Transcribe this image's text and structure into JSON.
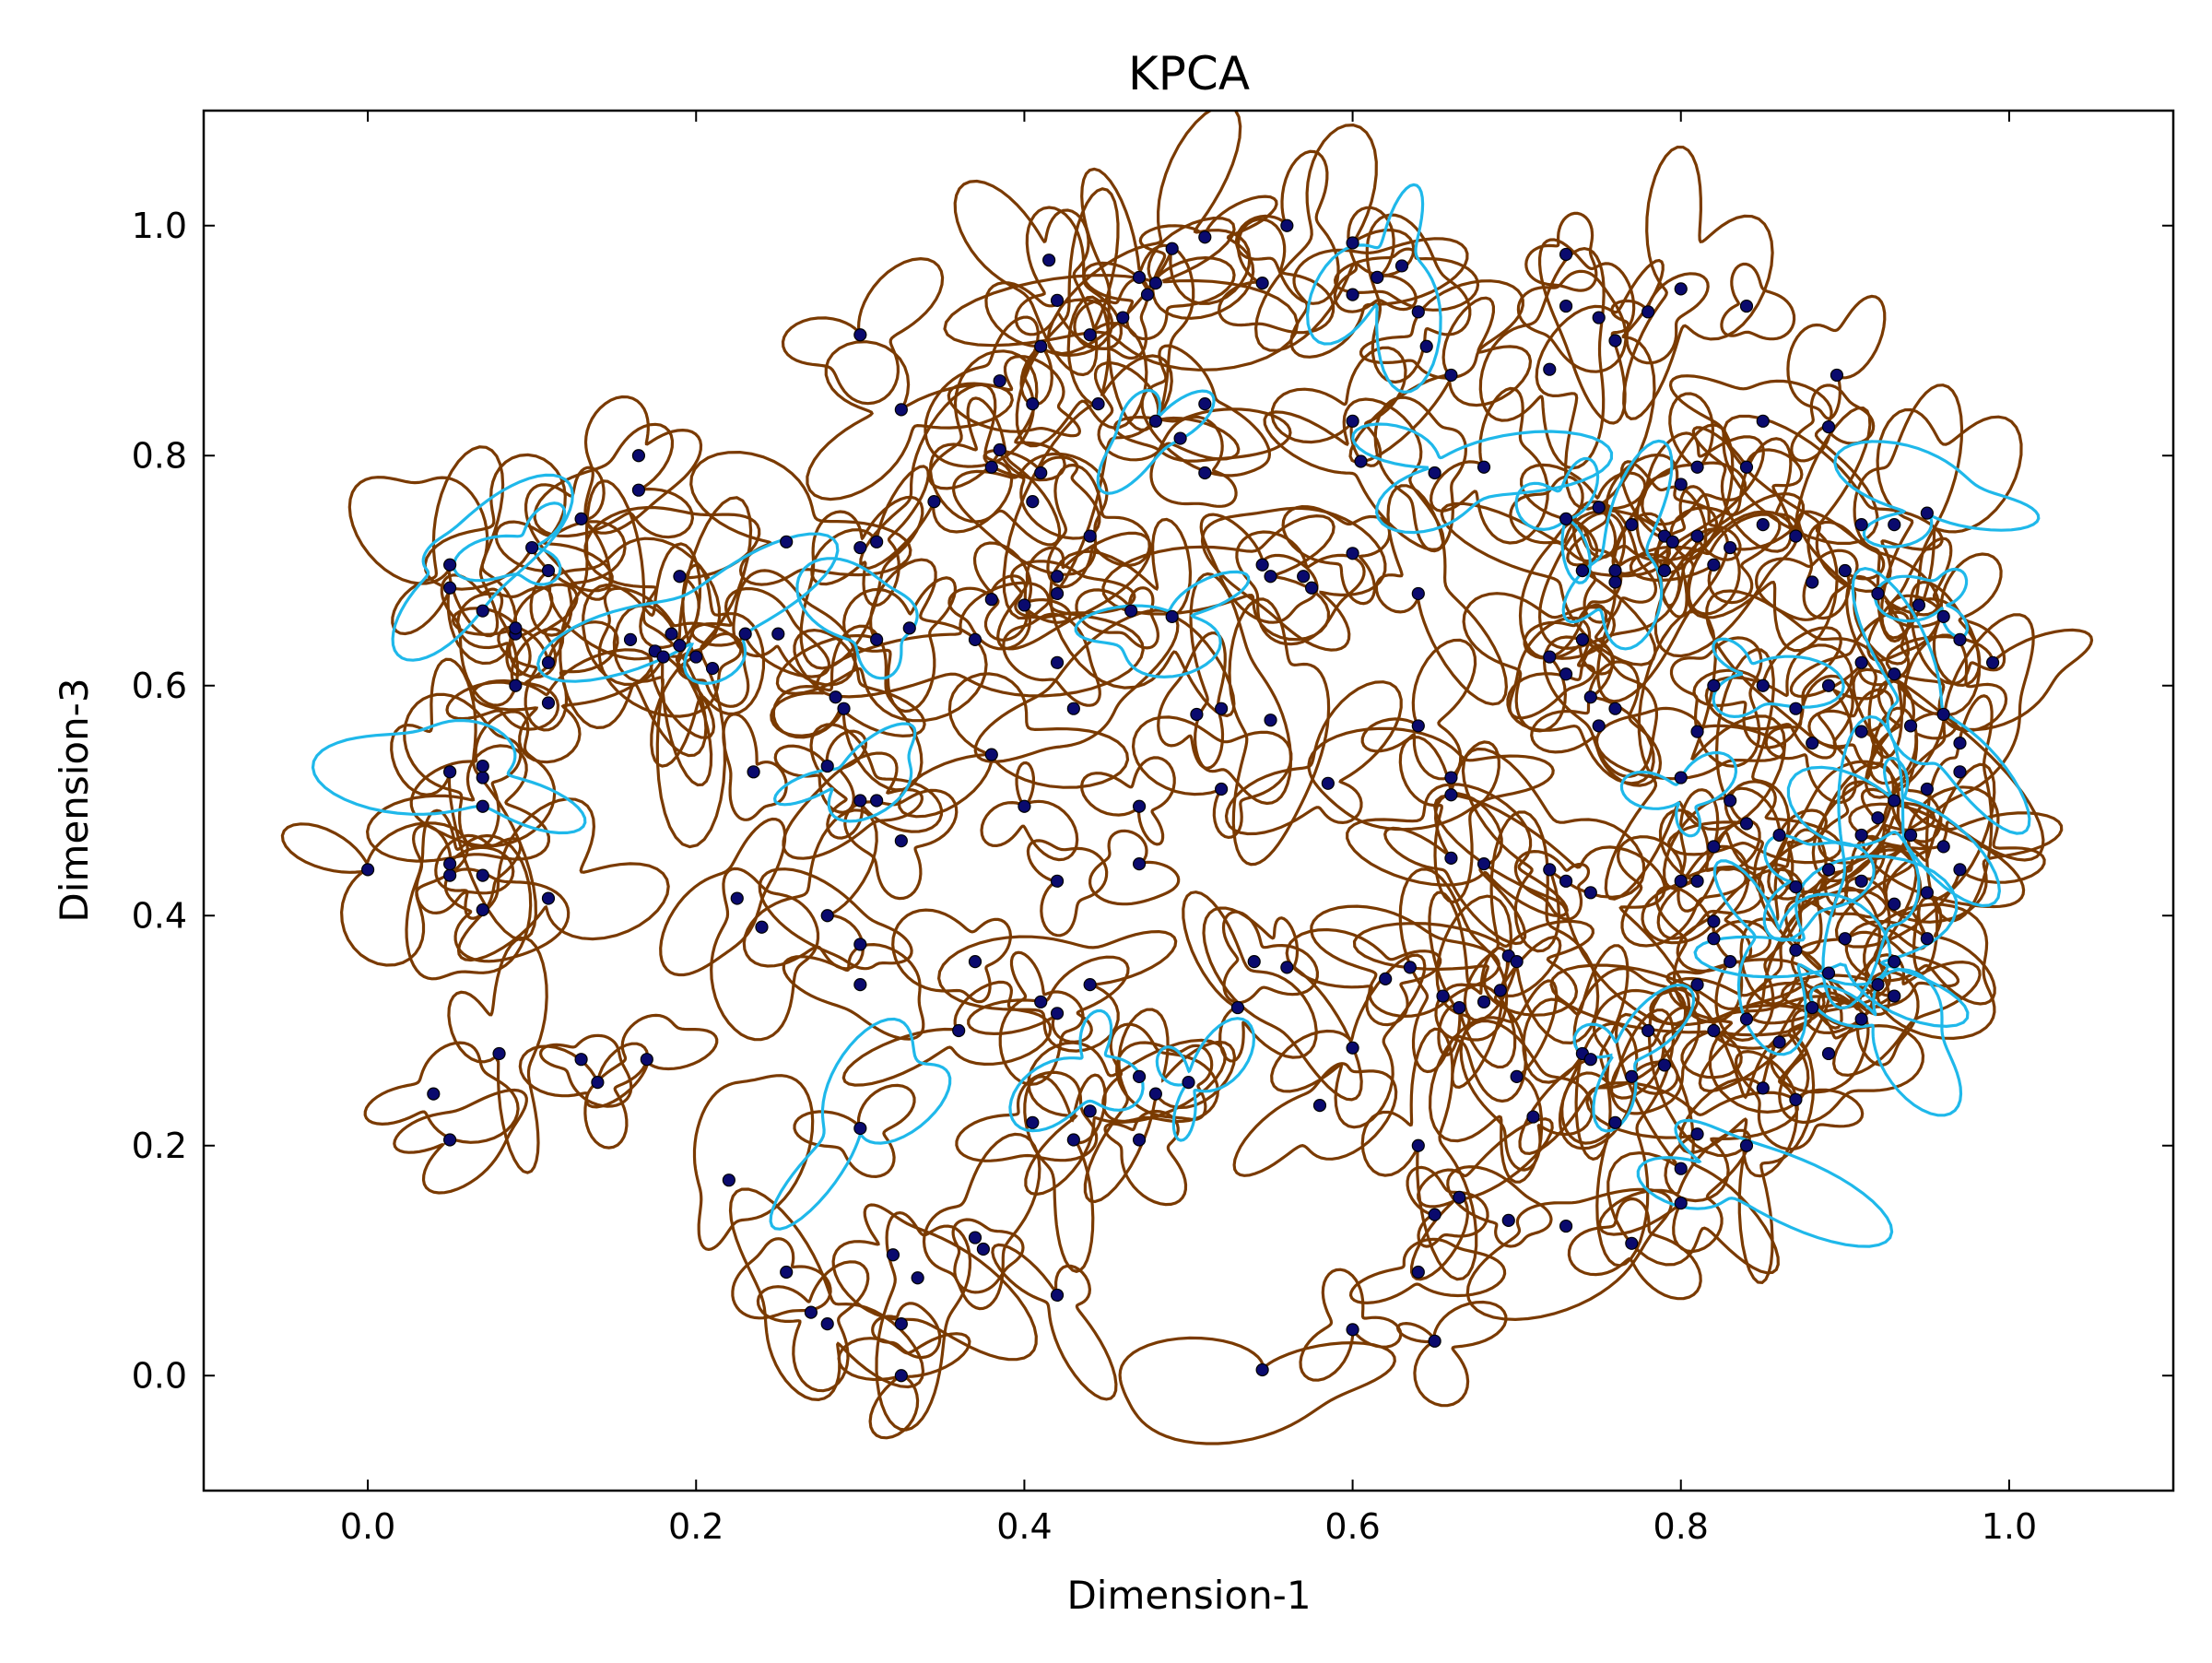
{
  "chart_data": {
    "type": "scatter",
    "title": "KPCA",
    "xlabel": "Dimension-1",
    "ylabel": "Dimension-3",
    "xlim": [
      -0.1,
      1.1
    ],
    "ylim": [
      -0.1,
      1.1
    ],
    "xticks": [
      "0.0",
      "0.2",
      "0.4",
      "0.6",
      "0.8",
      "1.0"
    ],
    "xtick_values": [
      0.0,
      0.2,
      0.4,
      0.6,
      0.8,
      1.0
    ],
    "yticks": [
      "0.0",
      "0.2",
      "0.4",
      "0.6",
      "0.8",
      "1.0"
    ],
    "ytick_values": [
      0.0,
      0.2,
      0.4,
      0.6,
      0.8,
      1.0
    ],
    "grid": false,
    "colors": {
      "point": "#0a0a6e",
      "glyph_main": "#7a3a00",
      "glyph_highlight": "#1fb8ea"
    },
    "points": [
      [
        0.05,
        0.525
      ],
      [
        0.07,
        0.52
      ],
      [
        0.07,
        0.53
      ],
      [
        0.07,
        0.495
      ],
      [
        0.0,
        0.44
      ],
      [
        0.05,
        0.435
      ],
      [
        0.05,
        0.445
      ],
      [
        0.07,
        0.435
      ],
      [
        0.07,
        0.405
      ],
      [
        0.11,
        0.415
      ],
      [
        0.05,
        0.705
      ],
      [
        0.05,
        0.685
      ],
      [
        0.07,
        0.665
      ],
      [
        0.1,
        0.72
      ],
      [
        0.11,
        0.7
      ],
      [
        0.09,
        0.645
      ],
      [
        0.09,
        0.65
      ],
      [
        0.11,
        0.62
      ],
      [
        0.09,
        0.6
      ],
      [
        0.11,
        0.585
      ],
      [
        0.13,
        0.745
      ],
      [
        0.165,
        0.8
      ],
      [
        0.165,
        0.77
      ],
      [
        0.19,
        0.695
      ],
      [
        0.16,
        0.64
      ],
      [
        0.175,
        0.63
      ],
      [
        0.18,
        0.625
      ],
      [
        0.19,
        0.635
      ],
      [
        0.2,
        0.625
      ],
      [
        0.21,
        0.615
      ],
      [
        0.185,
        0.645
      ],
      [
        0.23,
        0.645
      ],
      [
        0.25,
        0.645
      ],
      [
        0.255,
        0.725
      ],
      [
        0.3,
        0.72
      ],
      [
        0.31,
        0.725
      ],
      [
        0.31,
        0.64
      ],
      [
        0.285,
        0.59
      ],
      [
        0.29,
        0.58
      ],
      [
        0.28,
        0.53
      ],
      [
        0.3,
        0.5
      ],
      [
        0.31,
        0.5
      ],
      [
        0.235,
        0.525
      ],
      [
        0.325,
        0.465
      ],
      [
        0.3,
        0.905
      ],
      [
        0.325,
        0.84
      ],
      [
        0.345,
        0.76
      ],
      [
        0.33,
        0.65
      ],
      [
        0.37,
        0.64
      ],
      [
        0.4,
        0.67
      ],
      [
        0.38,
        0.675
      ],
      [
        0.38,
        0.79
      ],
      [
        0.385,
        0.805
      ],
      [
        0.41,
        0.785
      ],
      [
        0.405,
        0.76
      ],
      [
        0.385,
        0.865
      ],
      [
        0.405,
        0.845
      ],
      [
        0.415,
        0.97
      ],
      [
        0.42,
        0.935
      ],
      [
        0.41,
        0.895
      ],
      [
        0.44,
        0.905
      ],
      [
        0.445,
        0.845
      ],
      [
        0.46,
        0.92
      ],
      [
        0.47,
        0.955
      ],
      [
        0.475,
        0.94
      ],
      [
        0.48,
        0.95
      ],
      [
        0.49,
        0.98
      ],
      [
        0.51,
        0.99
      ],
      [
        0.545,
        0.95
      ],
      [
        0.56,
        1.0
      ],
      [
        0.6,
        0.94
      ],
      [
        0.615,
        0.955
      ],
      [
        0.6,
        0.985
      ],
      [
        0.63,
        0.965
      ],
      [
        0.64,
        0.925
      ],
      [
        0.645,
        0.895
      ],
      [
        0.66,
        0.87
      ],
      [
        0.6,
        0.83
      ],
      [
        0.605,
        0.795
      ],
      [
        0.65,
        0.785
      ],
      [
        0.68,
        0.79
      ],
      [
        0.48,
        0.83
      ],
      [
        0.495,
        0.815
      ],
      [
        0.51,
        0.845
      ],
      [
        0.51,
        0.785
      ],
      [
        0.42,
        0.695
      ],
      [
        0.44,
        0.73
      ],
      [
        0.42,
        0.68
      ],
      [
        0.43,
        0.58
      ],
      [
        0.42,
        0.62
      ],
      [
        0.38,
        0.54
      ],
      [
        0.4,
        0.495
      ],
      [
        0.42,
        0.43
      ],
      [
        0.465,
        0.665
      ],
      [
        0.49,
        0.66
      ],
      [
        0.47,
        0.495
      ],
      [
        0.47,
        0.445
      ],
      [
        0.505,
        0.575
      ],
      [
        0.52,
        0.58
      ],
      [
        0.55,
        0.57
      ],
      [
        0.52,
        0.51
      ],
      [
        0.545,
        0.705
      ],
      [
        0.55,
        0.695
      ],
      [
        0.57,
        0.695
      ],
      [
        0.575,
        0.685
      ],
      [
        0.6,
        0.715
      ],
      [
        0.64,
        0.68
      ],
      [
        0.64,
        0.565
      ],
      [
        0.66,
        0.52
      ],
      [
        0.66,
        0.505
      ],
      [
        0.68,
        0.445
      ],
      [
        0.66,
        0.45
      ],
      [
        0.585,
        0.515
      ],
      [
        0.225,
        0.415
      ],
      [
        0.24,
        0.39
      ],
      [
        0.28,
        0.4
      ],
      [
        0.3,
        0.375
      ],
      [
        0.3,
        0.34
      ],
      [
        0.37,
        0.36
      ],
      [
        0.36,
        0.3
      ],
      [
        0.41,
        0.325
      ],
      [
        0.42,
        0.315
      ],
      [
        0.44,
        0.34
      ],
      [
        0.04,
        0.245
      ],
      [
        0.05,
        0.205
      ],
      [
        0.08,
        0.28
      ],
      [
        0.13,
        0.275
      ],
      [
        0.14,
        0.255
      ],
      [
        0.17,
        0.275
      ],
      [
        0.22,
        0.17
      ],
      [
        0.3,
        0.215
      ],
      [
        0.255,
        0.09
      ],
      [
        0.27,
        0.055
      ],
      [
        0.28,
        0.045
      ],
      [
        0.32,
        0.105
      ],
      [
        0.335,
        0.085
      ],
      [
        0.37,
        0.12
      ],
      [
        0.375,
        0.11
      ],
      [
        0.42,
        0.07
      ],
      [
        0.325,
        0.045
      ],
      [
        0.325,
        0.0
      ],
      [
        0.405,
        0.22
      ],
      [
        0.43,
        0.205
      ],
      [
        0.44,
        0.23
      ],
      [
        0.47,
        0.26
      ],
      [
        0.48,
        0.245
      ],
      [
        0.5,
        0.255
      ],
      [
        0.47,
        0.205
      ],
      [
        0.54,
        0.36
      ],
      [
        0.56,
        0.355
      ],
      [
        0.53,
        0.32
      ],
      [
        0.58,
        0.235
      ],
      [
        0.6,
        0.285
      ],
      [
        0.62,
        0.345
      ],
      [
        0.635,
        0.355
      ],
      [
        0.64,
        0.2
      ],
      [
        0.655,
        0.33
      ],
      [
        0.665,
        0.32
      ],
      [
        0.68,
        0.325
      ],
      [
        0.69,
        0.335
      ],
      [
        0.695,
        0.365
      ],
      [
        0.7,
        0.36
      ],
      [
        0.7,
        0.26
      ],
      [
        0.71,
        0.225
      ],
      [
        0.74,
        0.28
      ],
      [
        0.745,
        0.275
      ],
      [
        0.76,
        0.22
      ],
      [
        0.77,
        0.26
      ],
      [
        0.78,
        0.3
      ],
      [
        0.79,
        0.27
      ],
      [
        0.65,
        0.14
      ],
      [
        0.665,
        0.155
      ],
      [
        0.695,
        0.135
      ],
      [
        0.73,
        0.13
      ],
      [
        0.77,
        0.115
      ],
      [
        0.8,
        0.15
      ],
      [
        0.8,
        0.18
      ],
      [
        0.64,
        0.09
      ],
      [
        0.6,
        0.04
      ],
      [
        0.65,
        0.03
      ],
      [
        0.545,
        0.005
      ],
      [
        0.84,
        0.93
      ],
      [
        0.8,
        0.945
      ],
      [
        0.78,
        0.925
      ],
      [
        0.73,
        0.975
      ],
      [
        0.73,
        0.93
      ],
      [
        0.75,
        0.92
      ],
      [
        0.76,
        0.9
      ],
      [
        0.72,
        0.875
      ],
      [
        0.895,
        0.87
      ],
      [
        0.85,
        0.83
      ],
      [
        0.89,
        0.825
      ],
      [
        0.81,
        0.79
      ],
      [
        0.8,
        0.775
      ],
      [
        0.84,
        0.79
      ],
      [
        0.73,
        0.745
      ],
      [
        0.75,
        0.755
      ],
      [
        0.77,
        0.74
      ],
      [
        0.79,
        0.73
      ],
      [
        0.795,
        0.725
      ],
      [
        0.74,
        0.7
      ],
      [
        0.76,
        0.69
      ],
      [
        0.79,
        0.7
      ],
      [
        0.81,
        0.73
      ],
      [
        0.82,
        0.705
      ],
      [
        0.83,
        0.72
      ],
      [
        0.85,
        0.74
      ],
      [
        0.87,
        0.73
      ],
      [
        0.88,
        0.69
      ],
      [
        0.9,
        0.7
      ],
      [
        0.91,
        0.74
      ],
      [
        0.93,
        0.74
      ],
      [
        0.95,
        0.75
      ],
      [
        0.92,
        0.68
      ],
      [
        0.945,
        0.67
      ],
      [
        0.96,
        0.66
      ],
      [
        0.97,
        0.64
      ],
      [
        0.99,
        0.62
      ],
      [
        0.91,
        0.62
      ],
      [
        0.93,
        0.61
      ],
      [
        0.89,
        0.6
      ],
      [
        0.87,
        0.58
      ],
      [
        0.88,
        0.55
      ],
      [
        0.91,
        0.56
      ],
      [
        0.94,
        0.565
      ],
      [
        0.96,
        0.575
      ],
      [
        0.97,
        0.55
      ],
      [
        0.97,
        0.525
      ],
      [
        0.95,
        0.51
      ],
      [
        0.93,
        0.5
      ],
      [
        0.92,
        0.485
      ],
      [
        0.91,
        0.47
      ],
      [
        0.94,
        0.47
      ],
      [
        0.96,
        0.46
      ],
      [
        0.97,
        0.44
      ],
      [
        0.95,
        0.42
      ],
      [
        0.93,
        0.41
      ],
      [
        0.91,
        0.43
      ],
      [
        0.89,
        0.44
      ],
      [
        0.87,
        0.425
      ],
      [
        0.86,
        0.47
      ],
      [
        0.84,
        0.48
      ],
      [
        0.82,
        0.46
      ],
      [
        0.81,
        0.43
      ],
      [
        0.83,
        0.5
      ],
      [
        0.8,
        0.52
      ],
      [
        0.81,
        0.56
      ],
      [
        0.85,
        0.6
      ],
      [
        0.82,
        0.6
      ],
      [
        0.73,
        0.61
      ],
      [
        0.745,
        0.59
      ],
      [
        0.76,
        0.58
      ],
      [
        0.75,
        0.565
      ],
      [
        0.72,
        0.625
      ],
      [
        0.74,
        0.64
      ],
      [
        0.8,
        0.43
      ],
      [
        0.82,
        0.395
      ],
      [
        0.82,
        0.38
      ],
      [
        0.83,
        0.36
      ],
      [
        0.81,
        0.34
      ],
      [
        0.87,
        0.37
      ],
      [
        0.9,
        0.38
      ],
      [
        0.92,
        0.34
      ],
      [
        0.93,
        0.33
      ],
      [
        0.91,
        0.31
      ],
      [
        0.89,
        0.28
      ],
      [
        0.86,
        0.29
      ],
      [
        0.85,
        0.25
      ],
      [
        0.87,
        0.24
      ],
      [
        0.84,
        0.2
      ],
      [
        0.81,
        0.21
      ],
      [
        0.82,
        0.3
      ],
      [
        0.84,
        0.31
      ],
      [
        0.88,
        0.32
      ],
      [
        0.89,
        0.35
      ],
      [
        0.93,
        0.36
      ],
      [
        0.95,
        0.38
      ],
      [
        0.73,
        0.43
      ],
      [
        0.745,
        0.42
      ],
      [
        0.72,
        0.44
      ],
      [
        0.76,
        0.7
      ],
      [
        0.74,
        0.7
      ]
    ],
    "highlighted_points": [
      [
        0.05,
        0.705
      ],
      [
        0.1,
        0.72
      ],
      [
        0.07,
        0.52
      ],
      [
        0.2,
        0.64
      ],
      [
        0.31,
        0.65
      ],
      [
        0.29,
        0.52
      ],
      [
        0.48,
        0.83
      ],
      [
        0.49,
        0.66
      ],
      [
        0.3,
        0.215
      ],
      [
        0.44,
        0.27
      ],
      [
        0.5,
        0.255
      ],
      [
        0.62,
        0.955
      ],
      [
        0.65,
        0.79
      ],
      [
        0.73,
        0.745
      ],
      [
        0.76,
        0.7
      ],
      [
        0.8,
        0.5
      ],
      [
        0.84,
        0.61
      ],
      [
        0.87,
        0.43
      ],
      [
        0.9,
        0.36
      ],
      [
        0.93,
        0.5
      ],
      [
        0.95,
        0.57
      ],
      [
        0.95,
        0.75
      ],
      [
        0.96,
        0.67
      ],
      [
        0.92,
        0.43
      ],
      [
        0.82,
        0.18
      ],
      [
        0.86,
        0.38
      ],
      [
        0.76,
        0.28
      ],
      [
        0.92,
        0.31
      ]
    ]
  }
}
